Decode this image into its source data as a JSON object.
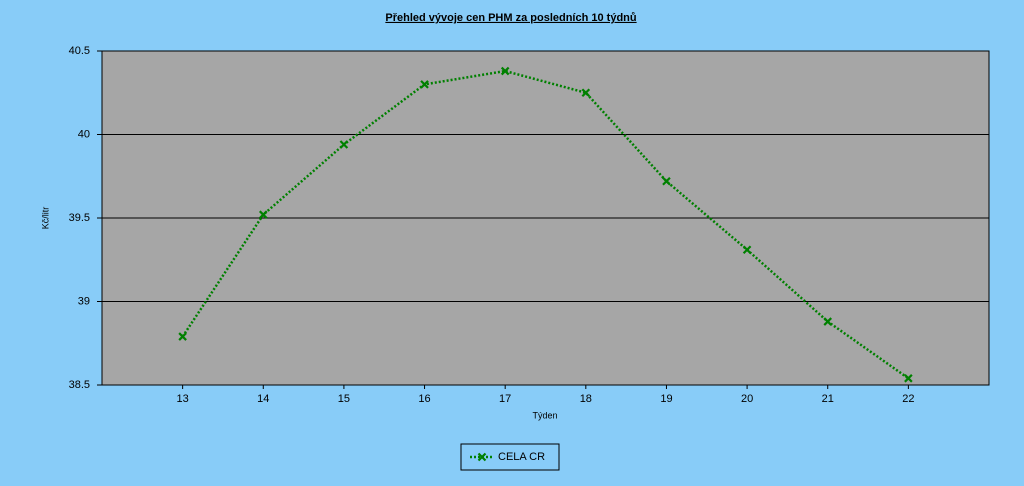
{
  "chart_data": {
    "type": "line",
    "title": "Přehled vývoje cen PHM za posledních 10 týdnů",
    "x_label": "Týden",
    "y_label": "Kč/litr",
    "x": [
      13,
      14,
      15,
      16,
      17,
      18,
      19,
      20,
      21,
      22
    ],
    "series": [
      {
        "name": "CELA CR",
        "color": "#008000",
        "values": [
          38.79,
          39.52,
          39.94,
          40.3,
          40.38,
          40.25,
          39.72,
          39.31,
          38.88,
          38.54
        ]
      }
    ],
    "xlim": [
      12,
      23
    ],
    "xticks": [
      13,
      14,
      15,
      16,
      17,
      18,
      19,
      20,
      21,
      22
    ],
    "ylim": [
      38.5,
      40.5
    ],
    "yticks": [
      38.5,
      39,
      39.5,
      40,
      40.5
    ],
    "grid": true,
    "legend": "bottom"
  }
}
